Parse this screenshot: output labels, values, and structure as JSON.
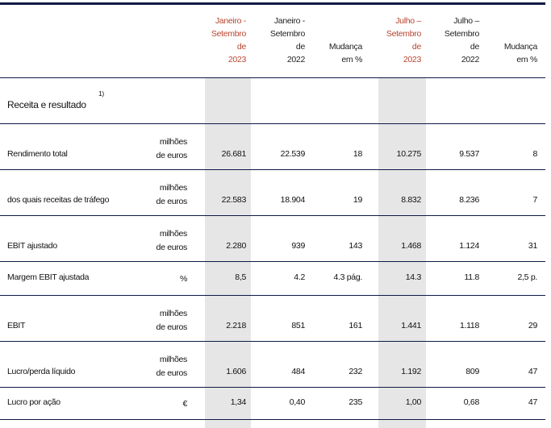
{
  "header": {
    "columns": [
      {
        "lines": [
          "Janeiro -",
          "Setembro",
          "de",
          "2023"
        ],
        "highlight": true
      },
      {
        "lines": [
          "Janeiro -",
          "Setembro",
          "de",
          "2022"
        ],
        "highlight": false
      },
      {
        "lines": [
          "Mudança",
          "em %"
        ],
        "highlight": false
      },
      {
        "lines": [
          "Julho –",
          "Setembro",
          "de",
          "2023"
        ],
        "highlight": true
      },
      {
        "lines": [
          "Julho –",
          "Setembro",
          "de",
          "2022"
        ],
        "highlight": false
      },
      {
        "lines": [
          "Mudança",
          "em %"
        ],
        "highlight": false
      }
    ]
  },
  "section": {
    "title": "Receita e resultado",
    "footnote": "1)"
  },
  "rows": [
    {
      "label": "Rendimento total",
      "unit": [
        "milhões",
        "de euros"
      ],
      "values": [
        "26.681",
        "22.539",
        "18",
        "10.275",
        "9.537",
        "8"
      ]
    },
    {
      "label": "dos quais receitas de tráfego",
      "unit": [
        "milhões",
        "de euros"
      ],
      "values": [
        "22.583",
        "18.904",
        "19",
        "8.832",
        "8.236",
        "7"
      ]
    },
    {
      "label": "EBIT ajustado",
      "unit": [
        "milhões",
        "de euros"
      ],
      "values": [
        "2.280",
        "939",
        "143",
        "1.468",
        "1.124",
        "31"
      ]
    },
    {
      "label": "Margem EBIT ajustada",
      "unit": [
        "%"
      ],
      "values": [
        "8,5",
        "4.2",
        "4.3 pág.",
        "14.3",
        "11.8",
        "2,5 p."
      ]
    },
    {
      "label": "EBIT",
      "unit": [
        "milhões",
        "de euros"
      ],
      "values": [
        "2.218",
        "851",
        "161",
        "1.441",
        "1.118",
        "29"
      ]
    },
    {
      "label": "Lucro/perda líquido",
      "unit": [
        "milhões",
        "de euros"
      ],
      "values": [
        "1.606",
        "484",
        "232",
        "1.192",
        "809",
        "47"
      ]
    },
    {
      "label": "Lucro por ação",
      "unit": [
        "€"
      ],
      "values": [
        "1,34",
        "0,40",
        "235",
        "1,00",
        "0,68",
        "47"
      ]
    }
  ],
  "colors": {
    "rule": "#0e1a45",
    "highlight_header": "#b8442e",
    "shade": "#e6e6e6"
  }
}
